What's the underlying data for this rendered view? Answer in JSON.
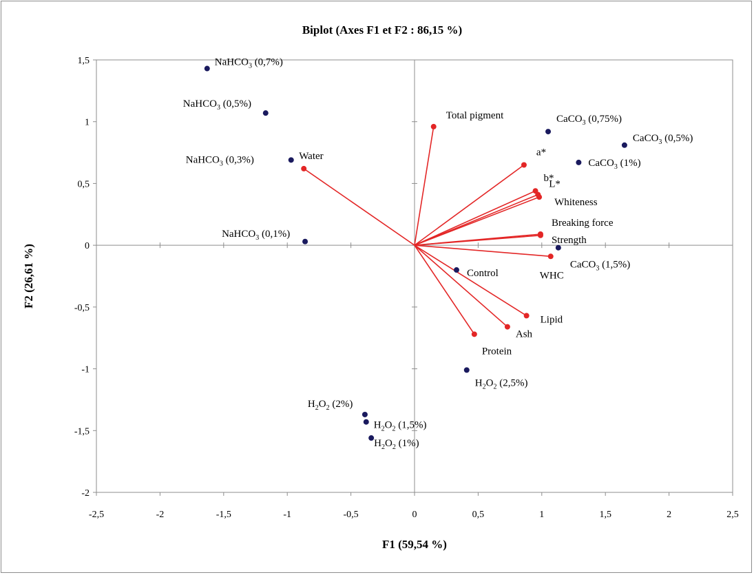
{
  "chart_data": {
    "type": "scatter",
    "title": "Biplot (Axes F1 et F2 : 86,15 %)",
    "xlabel": "F1 (59,54 %)",
    "ylabel": "F2 (26,61 %)",
    "xlim": [
      -2.5,
      2.5
    ],
    "ylim": [
      -2,
      1.5
    ],
    "grid": false,
    "x_ticks": [
      {
        "v": -2.5,
        "label": "-2,5"
      },
      {
        "v": -2,
        "label": "-2"
      },
      {
        "v": -1.5,
        "label": "-1,5"
      },
      {
        "v": -1,
        "label": "-1"
      },
      {
        "v": -0.5,
        "label": "-0,5"
      },
      {
        "v": 0,
        "label": "0"
      },
      {
        "v": 0.5,
        "label": "0,5"
      },
      {
        "v": 1,
        "label": "1"
      },
      {
        "v": 1.5,
        "label": "1,5"
      },
      {
        "v": 2,
        "label": "2"
      },
      {
        "v": 2.5,
        "label": "2,5"
      }
    ],
    "y_ticks": [
      {
        "v": -2,
        "label": "-2"
      },
      {
        "v": -1.5,
        "label": "-1,5"
      },
      {
        "v": -1,
        "label": "-1"
      },
      {
        "v": -0.5,
        "label": "-0,5"
      },
      {
        "v": 0,
        "label": "0"
      },
      {
        "v": 0.5,
        "label": "0,5"
      },
      {
        "v": 1,
        "label": "1"
      },
      {
        "v": 1.5,
        "label": "1,5"
      }
    ],
    "colors": {
      "observations": "#1a1a5e",
      "variables": "#e32626",
      "vectors": "#e32626"
    },
    "observations": [
      {
        "id": "nahco3-07",
        "label": "NaHCO",
        "sub": "3",
        "suffix": " (0,7%)",
        "x": -1.63,
        "y": 1.43
      },
      {
        "id": "nahco3-05",
        "label": "NaHCO",
        "sub": "3",
        "suffix": " (0,5%)",
        "x": -1.17,
        "y": 1.07
      },
      {
        "id": "nahco3-03",
        "label": "NaHCO",
        "sub": "3",
        "suffix": " (0,3%)",
        "x": -0.97,
        "y": 0.69
      },
      {
        "id": "nahco3-01",
        "label": "NaHCO",
        "sub": "3",
        "suffix": " (0,1%)",
        "x": -0.86,
        "y": 0.03
      },
      {
        "id": "caco3-075",
        "label": "CaCO",
        "sub": "3",
        "suffix": " (0,75%)",
        "x": 1.05,
        "y": 0.92
      },
      {
        "id": "caco3-05",
        "label": "CaCO",
        "sub": "3",
        "suffix": " (0,5%)",
        "x": 1.65,
        "y": 0.81
      },
      {
        "id": "caco3-1",
        "label": "CaCO",
        "sub": "3",
        "suffix": " (1%)",
        "x": 1.29,
        "y": 0.67
      },
      {
        "id": "caco3-15",
        "label": "CaCO",
        "sub": "3",
        "suffix": " (1,5%)",
        "x": 1.13,
        "y": -0.02
      },
      {
        "id": "control",
        "label": "Control",
        "sub": "",
        "suffix": "",
        "x": 0.33,
        "y": -0.2
      },
      {
        "id": "h2o2-25",
        "label": "H",
        "sub": "2",
        "mid": "O",
        "sub2": "2",
        "suffix": " (2,5%)",
        "x": 0.41,
        "y": -1.01
      },
      {
        "id": "h2o2-2",
        "label": "H",
        "sub": "2",
        "mid": "O",
        "sub2": "2",
        "suffix": " (2%)",
        "x": -0.39,
        "y": -1.37
      },
      {
        "id": "h2o2-15",
        "label": "H",
        "sub": "2",
        "mid": "O",
        "sub2": "2",
        "suffix": " (1,5%)",
        "x": -0.38,
        "y": -1.43
      },
      {
        "id": "h2o2-1",
        "label": "H",
        "sub": "2",
        "mid": "O",
        "sub2": "2",
        "suffix": " (1%)",
        "x": -0.34,
        "y": -1.56
      }
    ],
    "variables": [
      {
        "id": "total-pigment",
        "label": "Total pigment",
        "x": 0.15,
        "y": 0.96
      },
      {
        "id": "a-star",
        "label": "a*",
        "x": 0.86,
        "y": 0.65
      },
      {
        "id": "b-star",
        "label": "b*",
        "x": 0.95,
        "y": 0.44
      },
      {
        "id": "l-star",
        "label": "L*",
        "x": 0.97,
        "y": 0.41
      },
      {
        "id": "whiteness",
        "label": "Whiteness",
        "x": 0.98,
        "y": 0.39
      },
      {
        "id": "water",
        "label": "Water",
        "x": -0.87,
        "y": 0.62
      },
      {
        "id": "breaking-force",
        "label": "Breaking force",
        "x": 0.99,
        "y": 0.09
      },
      {
        "id": "strength",
        "label": "Strength",
        "x": 0.99,
        "y": 0.08
      },
      {
        "id": "whc",
        "label": "WHC",
        "x": 1.07,
        "y": -0.09
      },
      {
        "id": "lipid",
        "label": "Lipid",
        "x": 0.88,
        "y": -0.57
      },
      {
        "id": "ash",
        "label": "Ash",
        "x": 0.73,
        "y": -0.66
      },
      {
        "id": "protein",
        "label": "Protein",
        "x": 0.47,
        "y": -0.72
      }
    ]
  }
}
